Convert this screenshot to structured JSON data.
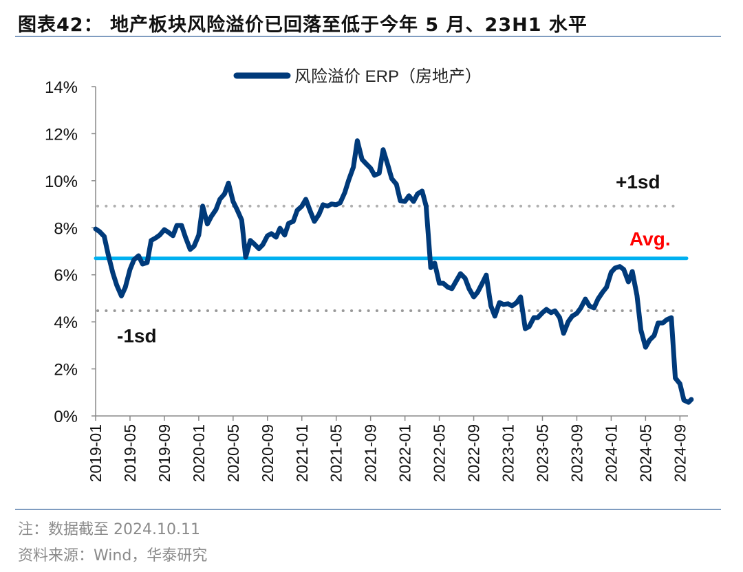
{
  "title": "图表42：  地产板块风险溢价已回落至低于今年 5 月、23H1 水平",
  "note": "注：数据截至 2024.10.11",
  "source": "资料来源：Wind，华泰研究",
  "chart_data": {
    "type": "line",
    "title": "",
    "xlabel": "",
    "ylabel": "",
    "ylim": [
      0,
      14
    ],
    "yticks": [
      "0%",
      "2%",
      "4%",
      "6%",
      "8%",
      "10%",
      "12%",
      "14%"
    ],
    "xticks": [
      "2019-01",
      "2019-05",
      "2019-09",
      "2020-01",
      "2020-05",
      "2020-09",
      "2021-01",
      "2021-05",
      "2021-09",
      "2022-01",
      "2022-05",
      "2022-09",
      "2023-01",
      "2023-05",
      "2023-09",
      "2024-01",
      "2024-05",
      "2024-09"
    ],
    "legend_position": "top-center",
    "grid": false,
    "colors": {
      "series": "#003A7A",
      "avg": "#00B0F0",
      "sd": "#A6A6A6",
      "avg_label": "#FF0000"
    },
    "reference_lines": [
      {
        "label": "+1sd",
        "value": 8.92
      },
      {
        "label": "Avg.",
        "value": 6.7
      },
      {
        "label": "-1sd",
        "value": 4.47
      }
    ],
    "series": [
      {
        "name": "风险溢价 ERP（房地产）",
        "x": [
          "2019-01-01",
          "2019-01-15",
          "2019-02-01",
          "2019-02-15",
          "2019-03-01",
          "2019-03-15",
          "2019-04-01",
          "2019-04-15",
          "2019-05-01",
          "2019-05-15",
          "2019-06-01",
          "2019-06-15",
          "2019-07-01",
          "2019-07-15",
          "2019-08-01",
          "2019-08-15",
          "2019-09-01",
          "2019-09-15",
          "2019-10-01",
          "2019-10-15",
          "2019-11-01",
          "2019-11-15",
          "2019-12-01",
          "2019-12-15",
          "2020-01-01",
          "2020-01-15",
          "2020-02-01",
          "2020-02-15",
          "2020-03-01",
          "2020-03-15",
          "2020-04-01",
          "2020-04-15",
          "2020-05-01",
          "2020-05-15",
          "2020-06-01",
          "2020-06-15",
          "2020-07-01",
          "2020-07-15",
          "2020-08-01",
          "2020-08-15",
          "2020-09-01",
          "2020-09-15",
          "2020-10-01",
          "2020-10-15",
          "2020-11-01",
          "2020-11-15",
          "2020-12-01",
          "2020-12-15",
          "2021-01-01",
          "2021-01-15",
          "2021-02-01",
          "2021-02-15",
          "2021-03-01",
          "2021-03-15",
          "2021-04-01",
          "2021-04-15",
          "2021-05-01",
          "2021-05-15",
          "2021-06-01",
          "2021-06-15",
          "2021-07-01",
          "2021-07-15",
          "2021-08-01",
          "2021-08-15",
          "2021-09-01",
          "2021-09-15",
          "2021-10-01",
          "2021-10-15",
          "2021-11-01",
          "2021-11-15",
          "2021-12-01",
          "2021-12-15",
          "2022-01-01",
          "2022-01-15",
          "2022-02-01",
          "2022-02-15",
          "2022-03-01",
          "2022-03-15",
          "2022-04-01",
          "2022-04-15",
          "2022-05-01",
          "2022-05-15",
          "2022-06-01",
          "2022-06-15",
          "2022-07-01",
          "2022-07-15",
          "2022-08-01",
          "2022-08-15",
          "2022-09-01",
          "2022-09-15",
          "2022-10-01",
          "2022-10-15",
          "2022-11-01",
          "2022-11-15",
          "2022-12-01",
          "2022-12-15",
          "2023-01-01",
          "2023-01-15",
          "2023-02-01",
          "2023-02-15",
          "2023-03-01",
          "2023-03-15",
          "2023-04-01",
          "2023-04-15",
          "2023-05-01",
          "2023-05-15",
          "2023-06-01",
          "2023-06-15",
          "2023-07-01",
          "2023-07-15",
          "2023-08-01",
          "2023-08-15",
          "2023-09-01",
          "2023-09-15",
          "2023-10-01",
          "2023-10-15",
          "2023-11-01",
          "2023-11-15",
          "2023-12-01",
          "2023-12-15",
          "2024-01-01",
          "2024-01-15",
          "2024-02-01",
          "2024-02-15",
          "2024-03-01",
          "2024-03-15",
          "2024-04-01",
          "2024-04-15",
          "2024-05-01",
          "2024-05-15",
          "2024-06-01",
          "2024-06-15",
          "2024-07-01",
          "2024-07-15",
          "2024-08-01",
          "2024-08-15",
          "2024-09-01",
          "2024-09-15",
          "2024-10-01",
          "2024-10-11"
        ],
        "values": [
          7.95,
          7.84,
          7.63,
          6.87,
          6.08,
          5.56,
          5.1,
          5.47,
          6.23,
          6.64,
          6.81,
          6.46,
          6.52,
          7.46,
          7.57,
          7.69,
          7.92,
          7.81,
          7.66,
          8.1,
          8.1,
          7.6,
          7.08,
          7.22,
          7.69,
          8.92,
          8.16,
          8.48,
          8.77,
          9.21,
          9.44,
          9.9,
          9.12,
          8.77,
          8.33,
          6.75,
          7.46,
          7.31,
          7.11,
          7.28,
          7.66,
          7.75,
          7.6,
          7.98,
          7.69,
          8.19,
          8.27,
          8.74,
          8.92,
          9.21,
          8.68,
          8.27,
          8.57,
          8.98,
          8.92,
          9.01,
          8.98,
          9.06,
          9.5,
          10.03,
          10.58,
          11.7,
          10.91,
          10.73,
          10.53,
          10.23,
          10.32,
          11.32,
          10.67,
          10.09,
          9.85,
          9.15,
          9.12,
          9.36,
          9.12,
          9.44,
          9.56,
          8.92,
          6.3,
          6.5,
          5.64,
          5.64,
          5.47,
          5.41,
          5.76,
          6.05,
          5.85,
          5.41,
          5.06,
          5.26,
          5.64,
          5.99,
          4.68,
          4.24,
          4.82,
          4.74,
          4.77,
          4.68,
          4.82,
          5.06,
          3.71,
          3.8,
          4.18,
          4.18,
          4.39,
          4.53,
          4.39,
          4.47,
          4.18,
          3.51,
          4.01,
          4.24,
          4.36,
          4.59,
          4.97,
          4.68,
          4.59,
          4.97,
          5.26,
          5.47,
          6.11,
          6.29,
          6.35,
          6.23,
          5.7,
          6.14,
          5.12,
          3.65,
          2.92,
          3.22,
          3.42,
          3.95,
          3.95,
          4.09,
          4.18,
          1.61,
          1.37,
          0.67,
          0.58,
          0.7
        ]
      }
    ]
  }
}
